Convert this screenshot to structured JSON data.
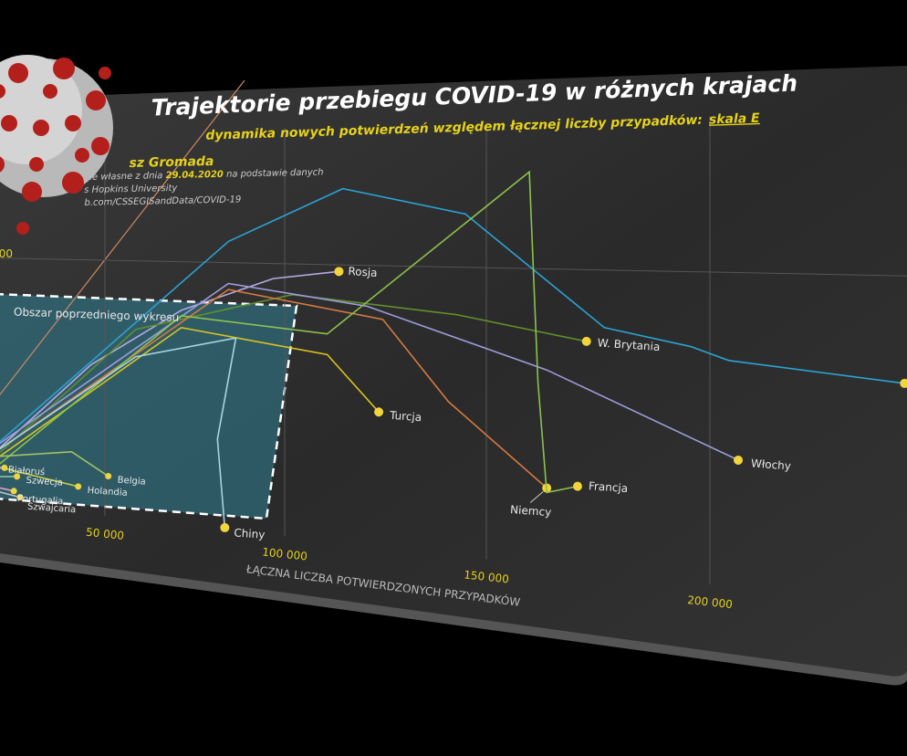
{
  "chart_data": {
    "type": "line",
    "title": "Trajektorie przebiegu COVID-19 w różnych krajach",
    "subtitle": "dynamika nowych potwierdzeń względem łącznej liczby przypadków:",
    "subtitle_link": "skala E",
    "author": "sz Gromada",
    "source": [
      "nie własne z dnia",
      "29.04.2020",
      "na podstawie danych",
      "s Hopkins University",
      "b.com/CSSEGISandData/COVID-19"
    ],
    "annotation": "Obszar poprzedniego wykresu",
    "x_label": "ŁĄCZNA LICZBA POTWIERDZONYCH PRZYPADKÓW",
    "xlim": [
      0,
      250000
    ],
    "xticks": [
      {
        "value": 50000,
        "label": "50 000"
      },
      {
        "value": 100000,
        "label": "100 000"
      },
      {
        "value": 150000,
        "label": "150 000"
      },
      {
        "value": 200000,
        "label": "200 000"
      }
    ],
    "ylim": [
      0,
      10000
    ],
    "yticks": [
      {
        "value": 6670,
        "label": "000"
      }
    ],
    "grid": true,
    "series": [
      {
        "name": "Rosja",
        "color": "#b7a9e6",
        "x": [
          17500,
          45800,
          72000,
          97000,
          114000
        ],
        "values": [
          1530,
          3920,
          5440,
          6300,
          6510
        ]
      },
      {
        "name": "W. Brytania",
        "color": "#5f8f2c",
        "x": [
          17500,
          59000,
          102000,
          143000,
          173000
        ],
        "values": [
          1400,
          4900,
          5920,
          5570,
          5080
        ]
      },
      {
        "color": "#2ba2d2",
        "x": [
          17500,
          85000,
          115000,
          145000,
          177000,
          196000,
          204000,
          240000
        ],
        "values": [
          1700,
          7200,
          8500,
          7900,
          5400,
          5060,
          4800,
          4500
        ]
      },
      {
        "name": "Turcja",
        "color": "#d6c41c",
        "x": [
          17500,
          72000,
          111000,
          124000
        ],
        "values": [
          1300,
          5000,
          4500,
          3200
        ]
      },
      {
        "name": "Włochy",
        "color": "#9c9cdc",
        "x": [
          17500,
          85000,
          121000,
          164000,
          206000
        ],
        "values": [
          1650,
          6150,
          5700,
          4400,
          2700
        ]
      },
      {
        "name": "Niemcy",
        "color": "#d47a40",
        "x": [
          17500,
          85000,
          125000,
          141000,
          164000
        ],
        "values": [
          1500,
          6000,
          5400,
          3550,
          1750
        ]
      },
      {
        "name": "Francja",
        "color": "#8cc24c",
        "x": [
          17500,
          72000,
          111000,
          160000,
          162000,
          164000,
          171000
        ],
        "values": [
          1100,
          5300,
          5000,
          8850,
          4100,
          1650,
          1850
        ]
      },
      {
        "name": "Chiny",
        "color": "#a9d2e2",
        "x": [
          17500,
          59000,
          87000,
          82000,
          84000
        ],
        "values": [
          1500,
          4200,
          4800,
          2250,
          50
        ]
      },
      {
        "name": "Belgia",
        "color": "#a2c262",
        "x": [
          17500,
          40000,
          51000
        ],
        "values": [
          1300,
          1600,
          1050
        ]
      },
      {
        "name": "Holandia",
        "color": "#c9d242",
        "x": [
          17500,
          42000
        ],
        "values": [
          1000,
          700
        ]
      },
      {
        "name": "Białoruś",
        "color": "#b2b2d2",
        "x": [
          10000,
          19000
        ],
        "values": [
          900,
          1000
        ]
      },
      {
        "name": "Szwecja",
        "color": "#8acaa2",
        "x": [
          12000,
          23000
        ],
        "values": [
          700,
          800
        ]
      },
      {
        "name": "Portugalia",
        "color": "#e2a2c2",
        "x": [
          12000,
          22000
        ],
        "values": [
          500,
          400
        ]
      },
      {
        "name": "Szwajcaria",
        "color": "#c2c2c2",
        "x": [
          12000,
          24000
        ],
        "values": [
          400,
          250
        ]
      }
    ]
  }
}
